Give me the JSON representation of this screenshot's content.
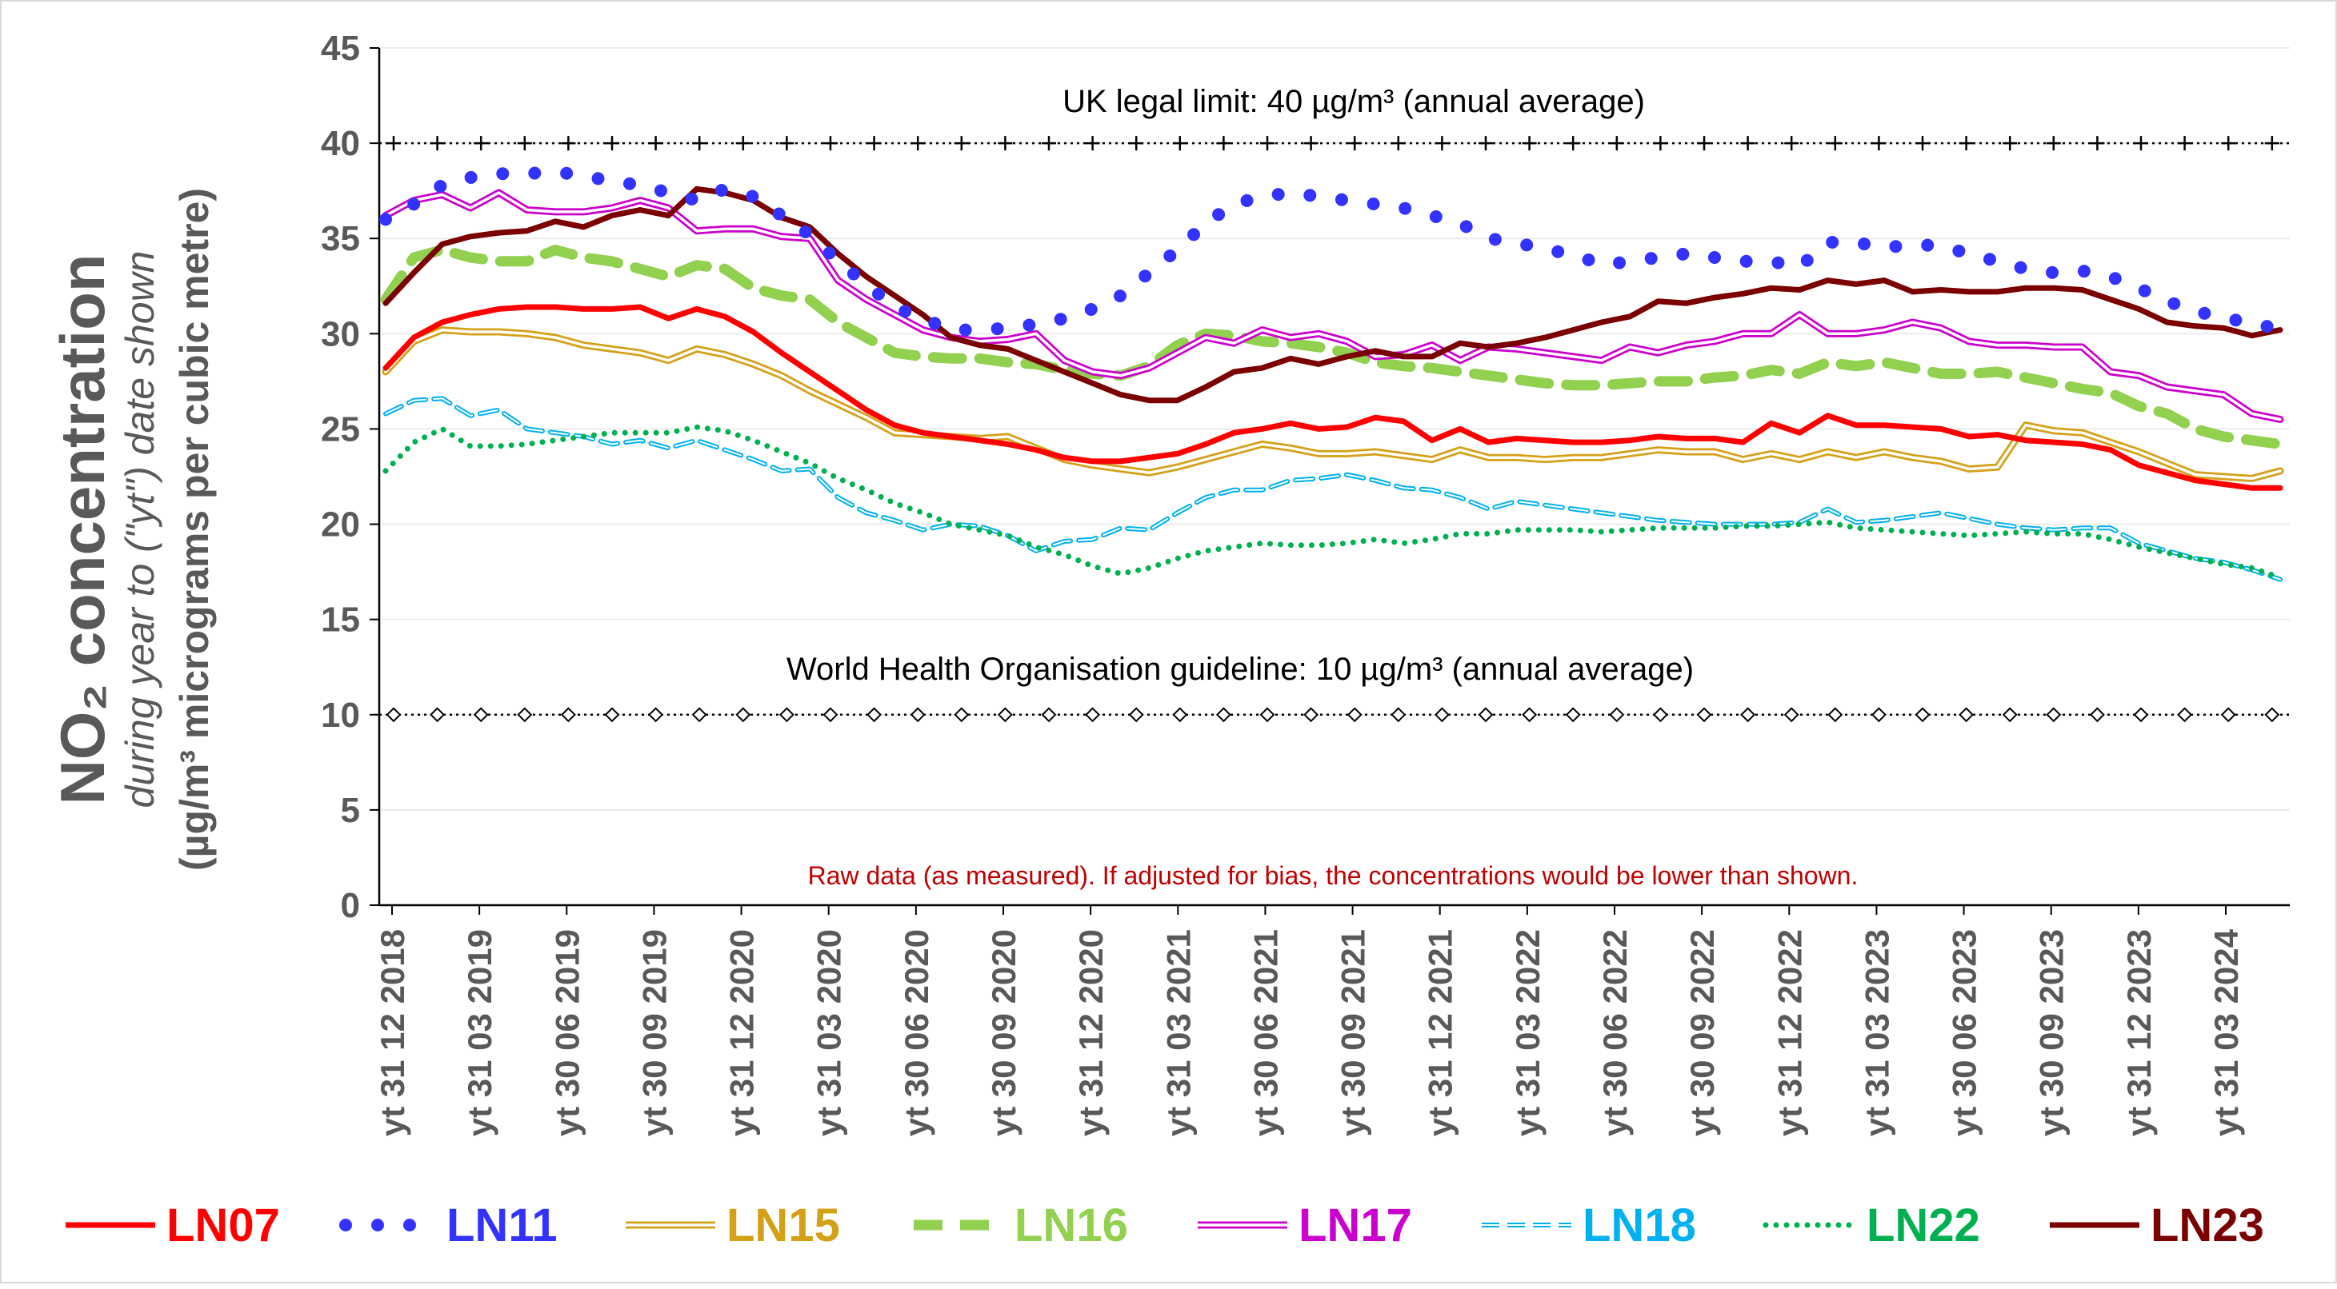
{
  "chart_data": {
    "type": "line",
    "ylabel_main": "NO₂ concentration",
    "ylabel_sub1": "during year to (\"yt\") date shown",
    "ylabel_sub2": "(µg/m³ micrograms per cubic metre)",
    "ylim": [
      0,
      45
    ],
    "yticks": [
      0,
      5,
      10,
      15,
      20,
      25,
      30,
      35,
      40,
      45
    ],
    "grid": true,
    "x_tick_labels": [
      "yt 31 12 2018",
      "yt 31 03 2019",
      "yt 30 06 2019",
      "yt 30 09 2019",
      "yt 31 12 2020",
      "yt 31 03 2020",
      "yt 30 06 2020",
      "yt 30 09 2020",
      "yt 31 12 2020",
      "yt 31 03 2021",
      "yt 30 06 2021",
      "yt 30 09 2021",
      "yt 31 12 2021",
      "yt 31 03 2022",
      "yt 30 06 2022",
      "yt 30 09 2022",
      "yt 31 12 2022",
      "yt 31 03 2023",
      "yt 30 06 2023",
      "yt 30 09 2023",
      "yt 31 12 2023",
      "yt 31 03 2024"
    ],
    "reference_lines": [
      {
        "value": 40,
        "label": "UK legal limit:  40 µg/m³ (annual average)",
        "style": "plus-markers"
      },
      {
        "value": 10,
        "label": "World Health Organisation guideline:  10 µg/m³ (annual average)",
        "style": "diamond-markers"
      }
    ],
    "note": "Raw data (as measured).  If adjusted for bias, the concentrations would be lower than shown.",
    "legend_position": "bottom",
    "series": [
      {
        "name": "LN07",
        "color": "#ff0000",
        "style": "solid",
        "values": [
          28.2,
          29.8,
          30.6,
          31.0,
          31.3,
          31.4,
          31.4,
          31.3,
          31.3,
          31.4,
          30.8,
          31.3,
          30.9,
          30.1,
          29.0,
          28.0,
          27.0,
          26.0,
          25.2,
          24.8,
          24.6,
          24.4,
          24.2,
          23.9,
          23.5,
          23.3,
          23.3,
          23.5,
          23.7,
          24.2,
          24.8,
          25.0,
          25.3,
          25.0,
          25.1,
          25.6,
          25.4,
          24.4,
          25.0,
          24.3,
          24.5,
          24.4,
          24.3,
          24.3,
          24.4,
          24.6,
          24.5,
          24.5,
          24.3,
          25.3,
          24.8,
          25.7,
          25.2,
          25.2,
          25.1,
          25.0,
          24.6,
          24.7,
          24.4,
          24.3,
          24.2,
          23.9,
          23.1,
          22.7,
          22.3,
          22.1,
          21.9,
          21.9
        ]
      },
      {
        "name": "LN11",
        "color": "#3333ff",
        "style": "dotted",
        "values": [
          36.0,
          36.8,
          37.8,
          38.2,
          38.4,
          38.4,
          38.5,
          38.3,
          38.0,
          37.8,
          37.4,
          37.0,
          37.6,
          37.2,
          36.2,
          35.2,
          33.8,
          32.6,
          31.4,
          30.8,
          30.2,
          30.2,
          30.3,
          30.5,
          30.8,
          31.3,
          32.0,
          33.2,
          34.4,
          35.8,
          36.8,
          37.2,
          37.4,
          37.2,
          37.0,
          36.8,
          36.6,
          36.2,
          35.8,
          35.0,
          34.8,
          34.4,
          34.2,
          33.6,
          33.8,
          34.0,
          34.2,
          34.0,
          33.8,
          33.8,
          33.5,
          34.8,
          34.8,
          34.5,
          34.7,
          34.6,
          34.2,
          33.8,
          33.4,
          33.2,
          33.3,
          33.0,
          32.4,
          31.7,
          31.2,
          30.8,
          30.6,
          30.2
        ]
      },
      {
        "name": "LN15",
        "color": "#d4a017",
        "style": "double",
        "values": [
          28.0,
          29.6,
          30.2,
          30.1,
          30.1,
          30.0,
          29.8,
          29.4,
          29.2,
          29.0,
          28.6,
          29.2,
          28.9,
          28.4,
          27.8,
          27.0,
          26.3,
          25.6,
          24.8,
          24.7,
          24.6,
          24.5,
          24.6,
          24.0,
          23.4,
          23.1,
          22.9,
          22.7,
          23.0,
          23.4,
          23.8,
          24.2,
          24.0,
          23.7,
          23.7,
          23.8,
          23.6,
          23.4,
          23.9,
          23.5,
          23.5,
          23.4,
          23.5,
          23.5,
          23.7,
          23.9,
          23.8,
          23.8,
          23.4,
          23.7,
          23.4,
          23.8,
          23.5,
          23.8,
          23.5,
          23.3,
          22.9,
          23.0,
          25.2,
          24.9,
          24.8,
          24.3,
          23.8,
          23.2,
          22.6,
          22.5,
          22.4,
          22.8
        ]
      },
      {
        "name": "LN16",
        "color": "#92d050",
        "style": "dashed",
        "values": [
          31.8,
          34.0,
          34.4,
          34.0,
          33.8,
          33.8,
          34.4,
          34.0,
          33.8,
          33.4,
          33.0,
          33.6,
          33.4,
          32.4,
          32.0,
          31.8,
          30.6,
          29.8,
          29.0,
          28.8,
          28.7,
          28.7,
          28.5,
          28.4,
          28.1,
          27.9,
          27.8,
          28.3,
          29.4,
          30.0,
          29.9,
          29.6,
          29.5,
          29.3,
          29.0,
          28.5,
          28.3,
          28.2,
          28.0,
          27.8,
          27.6,
          27.4,
          27.3,
          27.3,
          27.4,
          27.5,
          27.5,
          27.7,
          27.8,
          28.1,
          27.9,
          28.5,
          28.3,
          28.5,
          28.2,
          27.9,
          27.9,
          28.0,
          27.7,
          27.4,
          27.1,
          26.9,
          26.2,
          25.8,
          25.0,
          24.6,
          24.4,
          24.2
        ]
      },
      {
        "name": "LN17",
        "color": "#cc00cc",
        "style": "double",
        "values": [
          36.2,
          37.0,
          37.3,
          36.6,
          37.4,
          36.5,
          36.4,
          36.4,
          36.6,
          37.0,
          36.6,
          35.4,
          35.5,
          35.5,
          35.1,
          35.0,
          32.8,
          31.8,
          31.0,
          30.2,
          29.8,
          29.6,
          29.7,
          30.0,
          28.6,
          28.0,
          27.8,
          28.2,
          29.0,
          29.8,
          29.5,
          30.2,
          29.8,
          30.0,
          29.6,
          28.8,
          28.9,
          29.4,
          28.6,
          29.3,
          29.2,
          29.0,
          28.8,
          28.6,
          29.3,
          29.0,
          29.4,
          29.6,
          30.0,
          30.0,
          31.0,
          30.0,
          30.0,
          30.2,
          30.6,
          30.3,
          29.6,
          29.4,
          29.4,
          29.3,
          29.3,
          28.0,
          27.8,
          27.2,
          27.0,
          26.8,
          25.8,
          25.5
        ]
      },
      {
        "name": "LN18",
        "color": "#00b0f0",
        "style": "double-dashed",
        "values": [
          25.8,
          26.5,
          26.6,
          25.7,
          26.0,
          25.0,
          24.8,
          24.6,
          24.2,
          24.4,
          24.0,
          24.4,
          23.9,
          23.4,
          22.8,
          22.9,
          21.4,
          20.6,
          20.2,
          19.7,
          20.0,
          19.9,
          19.4,
          18.6,
          19.1,
          19.2,
          19.8,
          19.7,
          20.6,
          21.4,
          21.8,
          21.8,
          22.3,
          22.4,
          22.6,
          22.3,
          21.9,
          21.8,
          21.4,
          20.8,
          21.2,
          21.0,
          20.8,
          20.6,
          20.4,
          20.2,
          20.1,
          20.0,
          20.0,
          20.0,
          20.1,
          20.8,
          20.1,
          20.2,
          20.4,
          20.6,
          20.3,
          20.0,
          19.8,
          19.7,
          19.8,
          19.8,
          19.0,
          18.6,
          18.2,
          18.0,
          17.6,
          17.1
        ]
      },
      {
        "name": "LN22",
        "color": "#00b050",
        "style": "dotted-small",
        "values": [
          22.8,
          24.3,
          25.0,
          24.1,
          24.1,
          24.2,
          24.4,
          24.6,
          24.8,
          24.8,
          24.8,
          25.1,
          24.9,
          24.4,
          23.8,
          23.2,
          22.4,
          21.8,
          21.1,
          20.6,
          20.0,
          19.7,
          19.4,
          18.8,
          18.4,
          17.8,
          17.4,
          17.7,
          18.2,
          18.6,
          18.8,
          19.0,
          18.9,
          18.9,
          19.0,
          19.2,
          19.0,
          19.2,
          19.5,
          19.5,
          19.7,
          19.7,
          19.7,
          19.6,
          19.7,
          19.8,
          19.8,
          19.8,
          19.9,
          19.9,
          20.0,
          20.1,
          19.8,
          19.7,
          19.6,
          19.5,
          19.4,
          19.5,
          19.6,
          19.5,
          19.5,
          19.2,
          18.8,
          18.5,
          18.2,
          17.9,
          17.7,
          17.2
        ]
      },
      {
        "name": "LN23",
        "color": "#7b0000",
        "style": "solid",
        "values": [
          31.6,
          33.2,
          34.7,
          35.1,
          35.3,
          35.4,
          35.9,
          35.6,
          36.2,
          36.5,
          36.2,
          37.6,
          37.4,
          37.0,
          36.1,
          35.6,
          34.2,
          33.0,
          32.0,
          31.0,
          29.8,
          29.4,
          29.2,
          28.6,
          28.0,
          27.4,
          26.8,
          26.5,
          26.5,
          27.2,
          28.0,
          28.2,
          28.7,
          28.4,
          28.8,
          29.1,
          28.8,
          28.8,
          29.5,
          29.3,
          29.5,
          29.8,
          30.2,
          30.6,
          30.9,
          31.7,
          31.6,
          31.9,
          32.1,
          32.4,
          32.3,
          32.8,
          32.6,
          32.8,
          32.2,
          32.3,
          32.2,
          32.2,
          32.4,
          32.4,
          32.3,
          31.8,
          31.3,
          30.6,
          30.4,
          30.3,
          29.9,
          30.2
        ]
      }
    ]
  }
}
